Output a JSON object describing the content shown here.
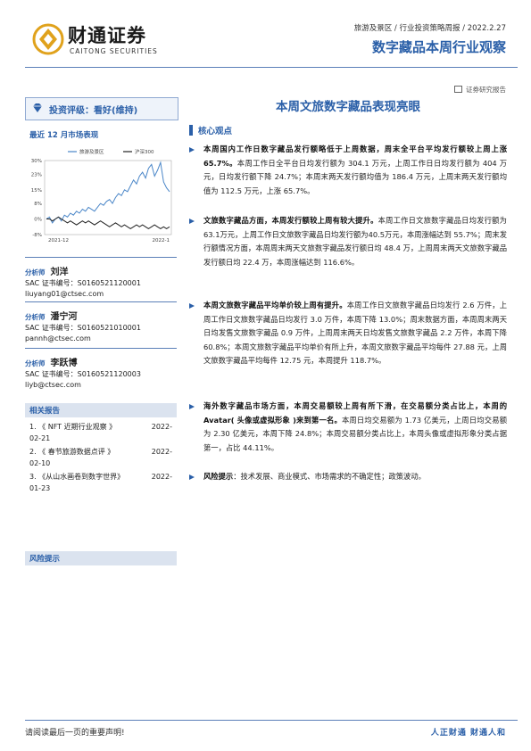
{
  "header": {
    "logo_cn": "财通证券",
    "logo_en": "CAITONG SECURITIES",
    "category": "旅游及景区 / 行业投资策略周报 / 2022.2.27",
    "report_title": "数字藏品本周行业观察",
    "doc_type": "证券研究报告"
  },
  "sidebar": {
    "rating": "投资评级：看好(维持)",
    "chart_title": "最近 12 月市场表现",
    "analysts": [
      {
        "label": "分析师",
        "name": "刘洋",
        "cert": "SAC 证书编号：S0160521120001",
        "email": "liuyang01@ctsec.com"
      },
      {
        "label": "分析师",
        "name": "潘宁河",
        "cert": "SAC 证书编号：S0160521010001",
        "email": "pannh@ctsec.com"
      },
      {
        "label": "分析师",
        "name": "李跃博",
        "cert": "SAC 证书编号：S0160521120003",
        "email": "liyb@ctsec.com"
      }
    ],
    "related_title": "相关报告",
    "related": [
      {
        "title": "1. 《 NFT 近期行业观察 》",
        "date": "2022-",
        "date2": "02-21"
      },
      {
        "title": "2. 《 春节旅游数据点评 》",
        "date": "2022-",
        "date2": "02-10"
      },
      {
        "title": "3. 《从山水画卷到数字世界》",
        "date": "2022-",
        "date2": "01-23"
      }
    ],
    "risk_title": "风险提示"
  },
  "chart_data": {
    "type": "line",
    "title": "",
    "xlabel": "",
    "ylabel": "",
    "x_ticks": [
      "2021-12",
      "2022-1"
    ],
    "y_ticks": [
      "30%",
      "23%",
      "15%",
      "8%",
      "0%",
      "-8%"
    ],
    "ylim": [
      -8,
      30
    ],
    "legend_position": "top",
    "series": [
      {
        "name": "旅游及景区",
        "color": "#4a86c8",
        "values": [
          0,
          1,
          -2,
          0,
          1,
          -1,
          2,
          1,
          3,
          2,
          4,
          3,
          5,
          4,
          6,
          5,
          4,
          6,
          8,
          7,
          9,
          10,
          8,
          11,
          13,
          12,
          15,
          14,
          17,
          20,
          18,
          22,
          24,
          21,
          26,
          28,
          22,
          25,
          29,
          19,
          16,
          14
        ]
      },
      {
        "name": "沪深300",
        "color": "#222222",
        "values": [
          0,
          0,
          -1,
          0,
          1,
          0,
          -1,
          -2,
          -1,
          -2,
          -3,
          -2,
          -1,
          -2,
          -1,
          -2,
          -3,
          -2,
          -1,
          -2,
          -3,
          -4,
          -3,
          -2,
          -3,
          -4,
          -3,
          -4,
          -5,
          -4,
          -3,
          -4,
          -3,
          -4,
          -5,
          -4,
          -3,
          -4,
          -5,
          -4,
          -5,
          -4
        ]
      }
    ]
  },
  "main": {
    "title": "本周文旅数字藏品表现亮眼",
    "core_label": "核心观点",
    "paragraphs": [
      {
        "bold": "本周国内工作日数字藏品发行额略低于上周数据，周末全平台平均发行额较上周上涨 65.7%。",
        "text": "本周工作日全平台日均发行额为 304.1 万元，上周工作日日均发行额为 404 万元，日均发行额下降 24.7%；本周末两天发行额均值为 186.4 万元，上周末两天发行额均值为 112.5 万元，上涨 65.7%。"
      },
      {
        "bold": "文旅数字藏品方面，本周发行额较上周有较大提升。",
        "text": "本周工作日文旅数字藏品日均发行额为63.1万元，上周工作日文旅数字藏品日均发行额为40.5万元，本周涨幅达到 55.7%；周末发行额情况方面，本周周末两天文旅数字藏品发行额日均 48.4 万，上周周末两天文旅数字藏品发行额日均 22.4 万，本周涨幅达到 116.6%。"
      },
      {
        "bold": "本周文旅数字藏品平均单价较上周有提升。",
        "text": "本周工作日文旅数字藏品日均发行 2.6 万件，上周工作日文旅数字藏品日均发行 3.0 万件，本周下降 13.0%；周末数据方面，本周周末两天日均发售文旅数字藏品 0.9 万件，上周周末两天日均发售文旅数字藏品 2.2 万件，本周下降 60.8%；本周文旅数字藏品平均单价有所上升，本周文旅数字藏品平均每件 27.88 元，上周文旅数字藏品平均每件 12.75 元，本周提升 118.7%。"
      },
      {
        "bold": "海外数字藏品市场方面，本周交易额较上周有所下滑，在交易额分类占比上，本周的 Avatar( 头像或虚拟形象 )来到第一名。",
        "text": "本周日均交易额为 1.73 亿美元，上周日均交易额为 2.30 亿美元，本周下降 24.8%；本周交易额分类占比上，本周头像或虚拟形象分类占据第一，占比 44.11%。"
      },
      {
        "bold": "风险提示",
        "text": "：技术发展、商业模式、市场需求的不确定性；政策波动。"
      }
    ]
  },
  "footer": {
    "left": "请阅读最后一页的重要声明!",
    "right": "人正财通  财通人和"
  }
}
